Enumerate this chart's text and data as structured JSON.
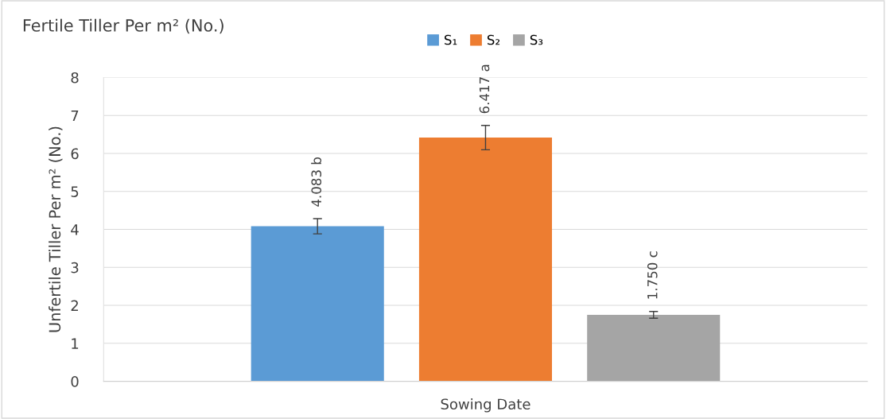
{
  "chart_data": {
    "type": "bar",
    "title": "Fertile Tiller Per m² (No.)",
    "xlabel": "Sowing Date",
    "ylabel": "Unfertile Tiller Per m² (No.)",
    "categories": [
      null
    ],
    "series": [
      {
        "name": "S₁",
        "color": "#5b9bd5",
        "values": [
          4.083
        ],
        "errors": [
          0.2
        ],
        "value_labels": [
          "4.083 b"
        ]
      },
      {
        "name": "S₂",
        "color": "#ed7d31",
        "values": [
          6.417
        ],
        "errors": [
          0.32
        ],
        "value_labels": [
          "6.417 a"
        ]
      },
      {
        "name": "S₃",
        "color": "#a5a5a5",
        "values": [
          1.75
        ],
        "errors": [
          0.09
        ],
        "value_labels": [
          "1.750 c"
        ]
      }
    ],
    "ylim": [
      0,
      8
    ],
    "yticks": [
      0,
      1,
      2,
      3,
      4,
      5,
      6,
      7,
      8
    ],
    "grid": "y",
    "legend": "top"
  }
}
